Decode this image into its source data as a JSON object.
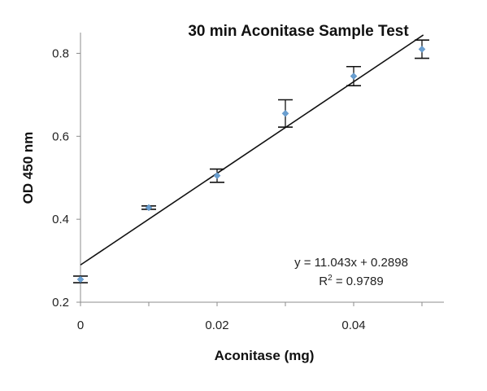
{
  "chart_data": {
    "type": "scatter",
    "title": "30 min Aconitase Sample Test",
    "xlabel": "Aconitase (mg)",
    "ylabel": "OD 450 nm",
    "xlim": [
      0,
      0.055
    ],
    "ylim": [
      0.2,
      0.85
    ],
    "xticks": [
      "0",
      "0.02",
      "0.04"
    ],
    "xtick_values": [
      0,
      0.02,
      0.04
    ],
    "yticks": [
      "0.2",
      "0.4",
      "0.6",
      "0.8"
    ],
    "ytick_values": [
      0.2,
      0.4,
      0.6,
      0.8
    ],
    "grid": false,
    "legend": "none",
    "marker_color": "#6a9fd0",
    "points": [
      {
        "x": 0,
        "y": 0.255,
        "err": 0.008
      },
      {
        "x": 0.01,
        "y": 0.428,
        "err": 0.004
      },
      {
        "x": 0.02,
        "y": 0.505,
        "err": 0.016
      },
      {
        "x": 0.03,
        "y": 0.655,
        "err": 0.033
      },
      {
        "x": 0.04,
        "y": 0.745,
        "err": 0.023
      },
      {
        "x": 0.05,
        "y": 0.81,
        "err": 0.022
      }
    ],
    "trendline": {
      "slope": 11.043,
      "intercept": 0.2898,
      "x_range": [
        0,
        0.05
      ]
    },
    "annotation": {
      "equation": "y = 11.043x + 0.2898",
      "r2_label": "R",
      "r2_sup": "2",
      "r2_value": " = 0.9789"
    }
  }
}
